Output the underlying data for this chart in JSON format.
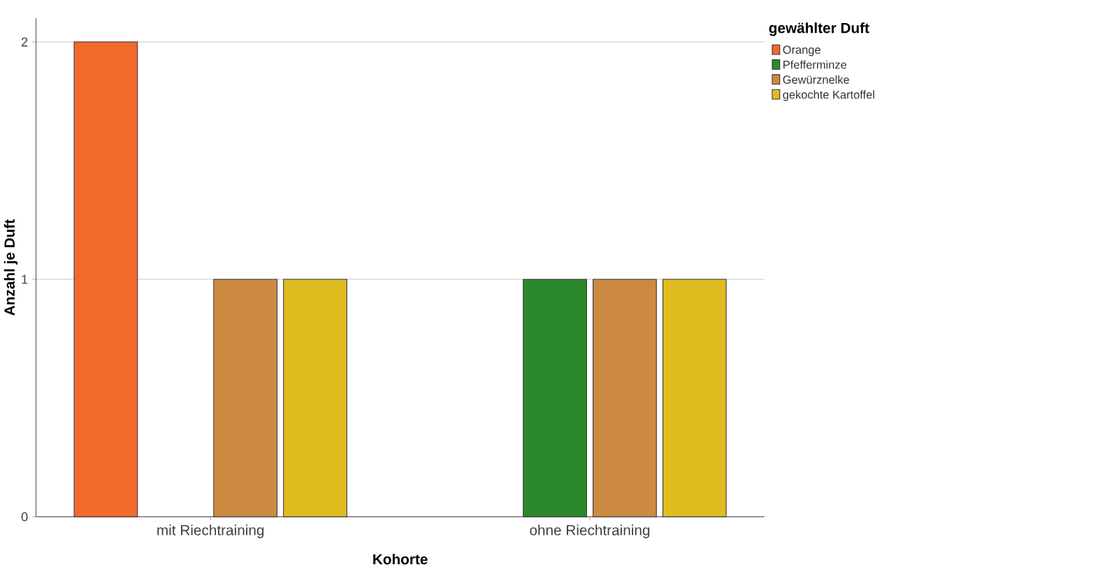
{
  "chart_data": {
    "type": "bar",
    "xlabel": "Kohorte",
    "ylabel": "Anzahl je Duft",
    "legend_title": "gewählter Duft",
    "categories": [
      "mit Riechtraining",
      "ohne Riechtraining"
    ],
    "series": [
      {
        "name": "Orange",
        "color": "#f26a2b",
        "values": [
          2,
          null
        ]
      },
      {
        "name": "Pfefferminze",
        "color": "#2a8a2b",
        "values": [
          null,
          1
        ]
      },
      {
        "name": "Gewürznelke",
        "color": "#cd8a41",
        "values": [
          1,
          1
        ]
      },
      {
        "name": "gekochte Kartoffel",
        "color": "#e0bc20",
        "values": [
          1,
          1
        ]
      }
    ],
    "ylim": [
      0,
      2.1
    ],
    "yticks": [
      0,
      1,
      2
    ],
    "grid": "y",
    "legend": "top right"
  }
}
